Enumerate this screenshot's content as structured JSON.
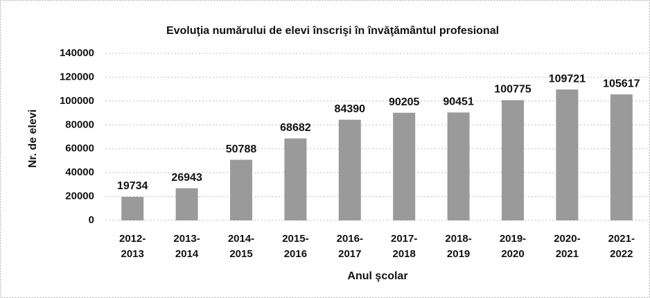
{
  "chart_data": {
    "type": "bar",
    "title": "Evoluţia numărului de elevi înscrişi în învăţământul profesional",
    "x_label": "Anul şcolar",
    "y_label": "Nr. de elevi",
    "categories": [
      "2012-2013",
      "2013-2014",
      "2014-2015",
      "2015-2016",
      "2016-2017",
      "2017-2018",
      "2018-2019",
      "2019-2020",
      "2020-2021",
      "2021-2022"
    ],
    "values": [
      19734,
      26943,
      50788,
      68682,
      84390,
      90205,
      90451,
      100775,
      109721,
      105617
    ],
    "color": "#9a9a9a",
    "ylim": [
      0,
      140000
    ],
    "yticks": [
      0,
      20000,
      40000,
      60000,
      80000,
      100000,
      120000,
      140000
    ],
    "grid": true
  }
}
